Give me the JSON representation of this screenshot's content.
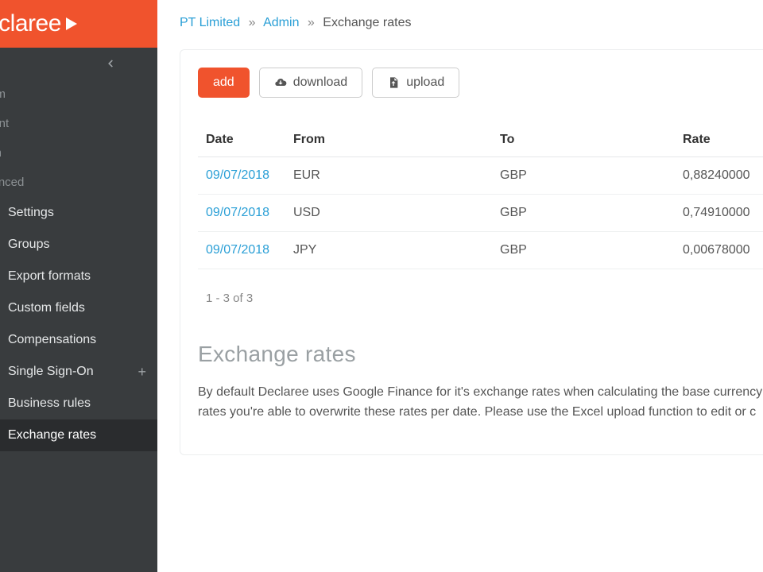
{
  "brand": {
    "name": "eclaree",
    "bg": "#f0532d"
  },
  "sidebar": {
    "bg": "#393c3e",
    "headings": [
      "tem",
      "ount",
      "nin",
      "vanced"
    ],
    "items": [
      {
        "label": "Settings"
      },
      {
        "label": "Groups"
      },
      {
        "label": "Export formats"
      },
      {
        "label": "Custom fields"
      },
      {
        "label": "Compensations"
      },
      {
        "label": "Single Sign-On",
        "plus": "+"
      },
      {
        "label": "Business rules"
      },
      {
        "label": "Exchange rates",
        "active": true
      }
    ]
  },
  "breadcrumbs": {
    "org": "PT Limited",
    "section": "Admin",
    "page": "Exchange rates",
    "sep": "»"
  },
  "toolbar": {
    "add": "add",
    "download": "download",
    "upload": "upload"
  },
  "table": {
    "headers": {
      "date": "Date",
      "from": "From",
      "to": "To",
      "rate": "Rate"
    },
    "rows": [
      {
        "date": "09/07/2018",
        "from": "EUR",
        "to": "GBP",
        "rate": "0,88240000"
      },
      {
        "date": "09/07/2018",
        "from": "USD",
        "to": "GBP",
        "rate": "0,74910000"
      },
      {
        "date": "09/07/2018",
        "from": "JPY",
        "to": "GBP",
        "rate": "0,00678000"
      }
    ]
  },
  "pager": "1 - 3 of 3",
  "info": {
    "title": "Exchange rates",
    "desc": "By default Declaree uses Google Finance for it's exchange rates when calculating the base currency rates you're able to overwrite these rates per date. Please use the Excel upload function to edit or c"
  },
  "colors": {
    "link": "#2a9fd6",
    "accent": "#f0532d",
    "border": "#e5e7e9"
  }
}
